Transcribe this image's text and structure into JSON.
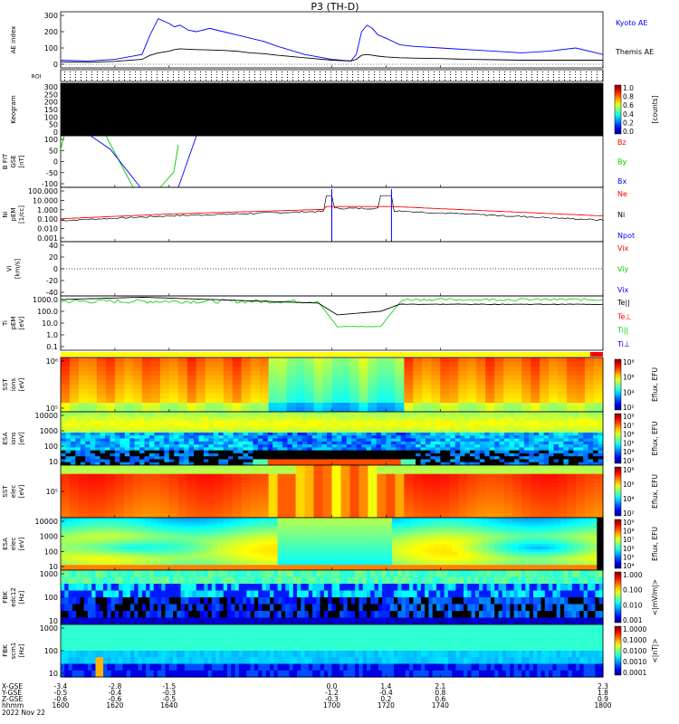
{
  "title": "P3 (TH-D)",
  "colors": {
    "blue": "#0000ff",
    "red": "#ff0000",
    "green": "#00cc00",
    "black": "#000000"
  },
  "chart_data": [
    {
      "id": "ae",
      "type": "line",
      "ylabel": "AE index",
      "yticks": [
        "300",
        "200",
        "100",
        "0"
      ],
      "ylim": [
        0,
        300
      ],
      "x": [
        1600,
        1610,
        1620,
        1630,
        1633,
        1636,
        1640,
        1642,
        1644,
        1647,
        1650,
        1655,
        1660,
        1665,
        1670,
        1675,
        1680,
        1690,
        1700,
        1707,
        1709,
        1711,
        1713,
        1715,
        1717,
        1720,
        1725,
        1730,
        1740,
        1750,
        1760,
        1770,
        1780,
        1790,
        1800
      ],
      "series": [
        {
          "name": "Kyoto AE",
          "color": "#0000ff",
          "values": [
            25,
            20,
            30,
            60,
            180,
            280,
            250,
            230,
            240,
            210,
            200,
            220,
            200,
            180,
            160,
            140,
            110,
            60,
            30,
            20,
            60,
            200,
            240,
            220,
            180,
            160,
            120,
            110,
            100,
            90,
            80,
            70,
            80,
            100,
            60
          ]
        },
        {
          "name": "Themis AE",
          "color": "#000000",
          "values": [
            15,
            12,
            18,
            30,
            55,
            70,
            80,
            90,
            95,
            92,
            90,
            88,
            85,
            80,
            70,
            65,
            55,
            40,
            25,
            20,
            30,
            55,
            60,
            55,
            50,
            45,
            40,
            38,
            35,
            30,
            28,
            25,
            25,
            25,
            25
          ]
        }
      ]
    },
    {
      "id": "roi",
      "type": "table",
      "ylabel": "ROI"
    },
    {
      "id": "keogram",
      "type": "heatmap",
      "ylabel": "Keogram",
      "yticks": [
        "300",
        "250",
        "200",
        "150",
        "100",
        "50",
        "0"
      ],
      "colorbar": {
        "label": "[counts]",
        "ticks": [
          "1.0",
          "0.8",
          "0.6",
          "0.4",
          "0.2",
          "0.0"
        ]
      }
    },
    {
      "id": "bfit",
      "type": "line",
      "ylabel": [
        "B FIT",
        "GSE",
        "[nT]"
      ],
      "yticks": [
        "100",
        "50",
        "0",
        "-50",
        "-100"
      ],
      "ylim": [
        -100,
        100
      ],
      "series": [
        {
          "name": "Bz",
          "color": "#ff0000"
        },
        {
          "name": "By",
          "color": "#00cc00"
        },
        {
          "name": "Bx",
          "color": "#0000ff"
        }
      ]
    },
    {
      "id": "ni",
      "type": "line",
      "ylabel": [
        "Ni",
        "pEM",
        "[1/cc]"
      ],
      "yticks": [
        "100.000",
        "10.000",
        "1.000",
        "0.100",
        "0.010",
        "0.001"
      ],
      "series": [
        {
          "name": "Ne",
          "color": "#ff0000"
        },
        {
          "name": "Ni",
          "color": "#000000"
        },
        {
          "name": "Npot",
          "color": "#0000ff"
        }
      ]
    },
    {
      "id": "vi",
      "type": "line",
      "ylabel": [
        "Vi",
        "[km/s]"
      ],
      "yticks": [
        "40",
        "20",
        "0",
        "-20",
        "-40"
      ],
      "series": [
        {
          "name": "Vix",
          "color": "#ff0000"
        },
        {
          "name": "Viy",
          "color": "#00cc00"
        },
        {
          "name": "Vix",
          "color": "#0000ff"
        }
      ]
    },
    {
      "id": "ti",
      "type": "line",
      "ylabel": [
        "Ti",
        "pEM",
        "[eV]"
      ],
      "yticks": [
        "1000.0",
        "100.0",
        "10.0",
        "1.0",
        "0.1"
      ],
      "series": [
        {
          "name": "Te||",
          "color": "#000000"
        },
        {
          "name": "Te⊥",
          "color": "#ff0000"
        },
        {
          "name": "Ti||",
          "color": "#00cc00"
        },
        {
          "name": "Ti⊥",
          "color": "#0000ff"
        }
      ]
    },
    {
      "id": "sst_i",
      "type": "heatmap",
      "ylabel": [
        "SST",
        "ions",
        "[eV]"
      ],
      "yticks": [
        "10⁶",
        "10⁵"
      ],
      "colorbar": {
        "label": "Eflux, EFU",
        "ticks": [
          "10⁸",
          "10⁶",
          "10⁴",
          "10²"
        ]
      }
    },
    {
      "id": "esa_i",
      "type": "heatmap",
      "ylabel": [
        "ESA",
        "ions",
        "[eV]"
      ],
      "yticks": [
        "10000",
        "1000",
        "100",
        "10"
      ],
      "colorbar": {
        "label": "Eflux, EFU",
        "ticks": [
          "10⁸",
          "10⁷",
          "10⁶",
          "10⁵",
          "10⁴",
          "10³"
        ]
      }
    },
    {
      "id": "sst_e",
      "type": "heatmap",
      "ylabel": [
        "SST",
        "elec",
        "[eV]"
      ],
      "yticks": [
        "10⁵"
      ],
      "colorbar": {
        "label": "Eflux, EFU",
        "ticks": [
          "10⁸",
          "10⁶",
          "10⁴",
          "10²"
        ]
      }
    },
    {
      "id": "esa_e",
      "type": "heatmap",
      "ylabel": [
        "ESA",
        "elec",
        "[eV]"
      ],
      "yticks": [
        "10000",
        "1000",
        "100",
        "10"
      ],
      "colorbar": {
        "label": "Eflux, EFU",
        "ticks": [
          "10⁹",
          "10⁸",
          "10⁷",
          "10⁶",
          "10⁵",
          "10⁴"
        ]
      }
    },
    {
      "id": "fbk_e",
      "type": "heatmap",
      "ylabel": [
        "FBK",
        "edc12",
        "[Hz]"
      ],
      "yticks": [
        "1000",
        "100",
        "10"
      ],
      "colorbar": {
        "label": "<|mV/m|>",
        "ticks": [
          "1.000",
          "0.100",
          "0.010",
          "0.001"
        ]
      }
    },
    {
      "id": "fbk_b",
      "type": "heatmap",
      "ylabel": [
        "FBK",
        "scm1",
        "[Hz]"
      ],
      "yticks": [
        "1000",
        "100",
        "10"
      ],
      "colorbar": {
        "label": "<|nT|>",
        "ticks": [
          "1.0000",
          "0.1000",
          "0.0100",
          "0.0010",
          "0.0001"
        ]
      }
    }
  ],
  "x_axis": {
    "row_labels": [
      "X-GSE",
      "Y-GSE",
      "Z-GSE",
      "hhmm",
      "2022 Nov 22"
    ],
    "columns": [
      {
        "t": 1600,
        "vals": [
          "-3.4",
          "-0.5",
          "-0.6",
          "1600"
        ]
      },
      {
        "t": 1620,
        "vals": [
          "-2.8",
          "-0.4",
          "-0.6",
          "1620"
        ]
      },
      {
        "t": 1640,
        "vals": [
          "-1.5",
          "-0.3",
          "-0.5",
          "1640"
        ]
      },
      {
        "t": 1700,
        "vals": [
          "0.0",
          "-1.2",
          "-0.3",
          "1700"
        ]
      },
      {
        "t": 1720,
        "vals": [
          "1.4",
          "-0.4",
          "0.2",
          "1720"
        ]
      },
      {
        "t": 1740,
        "vals": [
          "2.1",
          "0.8",
          "0.6",
          "1740"
        ]
      },
      {
        "t": 1800,
        "vals": [
          "2.3",
          "1.8",
          "0.9",
          "1800"
        ]
      }
    ]
  }
}
